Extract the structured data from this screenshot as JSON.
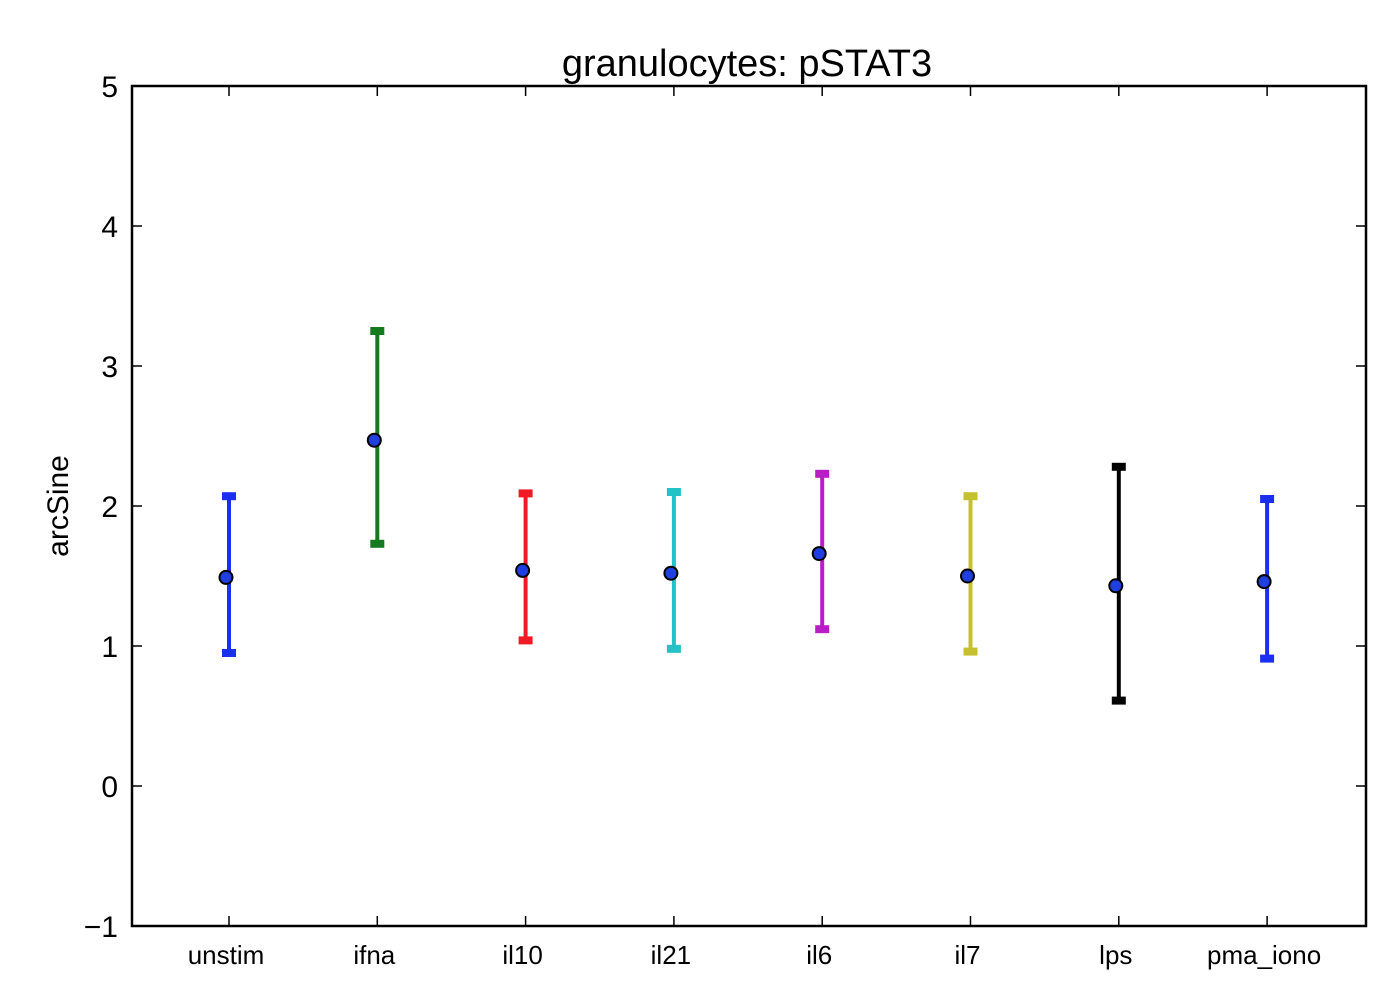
{
  "chart_data": {
    "type": "scatter",
    "title": "granulocytes: pSTAT3",
    "xlabel": "",
    "ylabel": "arcSine",
    "ylim": [
      -1,
      5
    ],
    "yticks": [
      -1,
      0,
      1,
      2,
      3,
      4,
      5
    ],
    "ytick_labels": [
      "−1",
      "0",
      "1",
      "2",
      "3",
      "4",
      "5"
    ],
    "grid": false,
    "legend": "none",
    "marker_color": "#1f3fe0",
    "categories": [
      "unstim",
      "ifna",
      "il10",
      "il21",
      "il6",
      "il7",
      "lps",
      "pma_iono"
    ],
    "points": [
      {
        "category": "unstim",
        "mean": 1.49,
        "lower": 0.95,
        "upper": 2.07,
        "color": "#1a2ff0"
      },
      {
        "category": "ifna",
        "mean": 2.47,
        "lower": 1.73,
        "upper": 3.25,
        "color": "#147a1e"
      },
      {
        "category": "il10",
        "mean": 1.54,
        "lower": 1.04,
        "upper": 2.09,
        "color": "#f01a24"
      },
      {
        "category": "il21",
        "mean": 1.52,
        "lower": 0.98,
        "upper": 2.1,
        "color": "#22c2c6"
      },
      {
        "category": "il6",
        "mean": 1.66,
        "lower": 1.12,
        "upper": 2.23,
        "color": "#b81ec4"
      },
      {
        "category": "il7",
        "mean": 1.5,
        "lower": 0.96,
        "upper": 2.07,
        "color": "#c4c030"
      },
      {
        "category": "lps",
        "mean": 1.43,
        "lower": 0.61,
        "upper": 2.28,
        "color": "#000000"
      },
      {
        "category": "pma_iono",
        "mean": 1.46,
        "lower": 0.91,
        "upper": 2.05,
        "color": "#1a2ff0"
      }
    ]
  }
}
